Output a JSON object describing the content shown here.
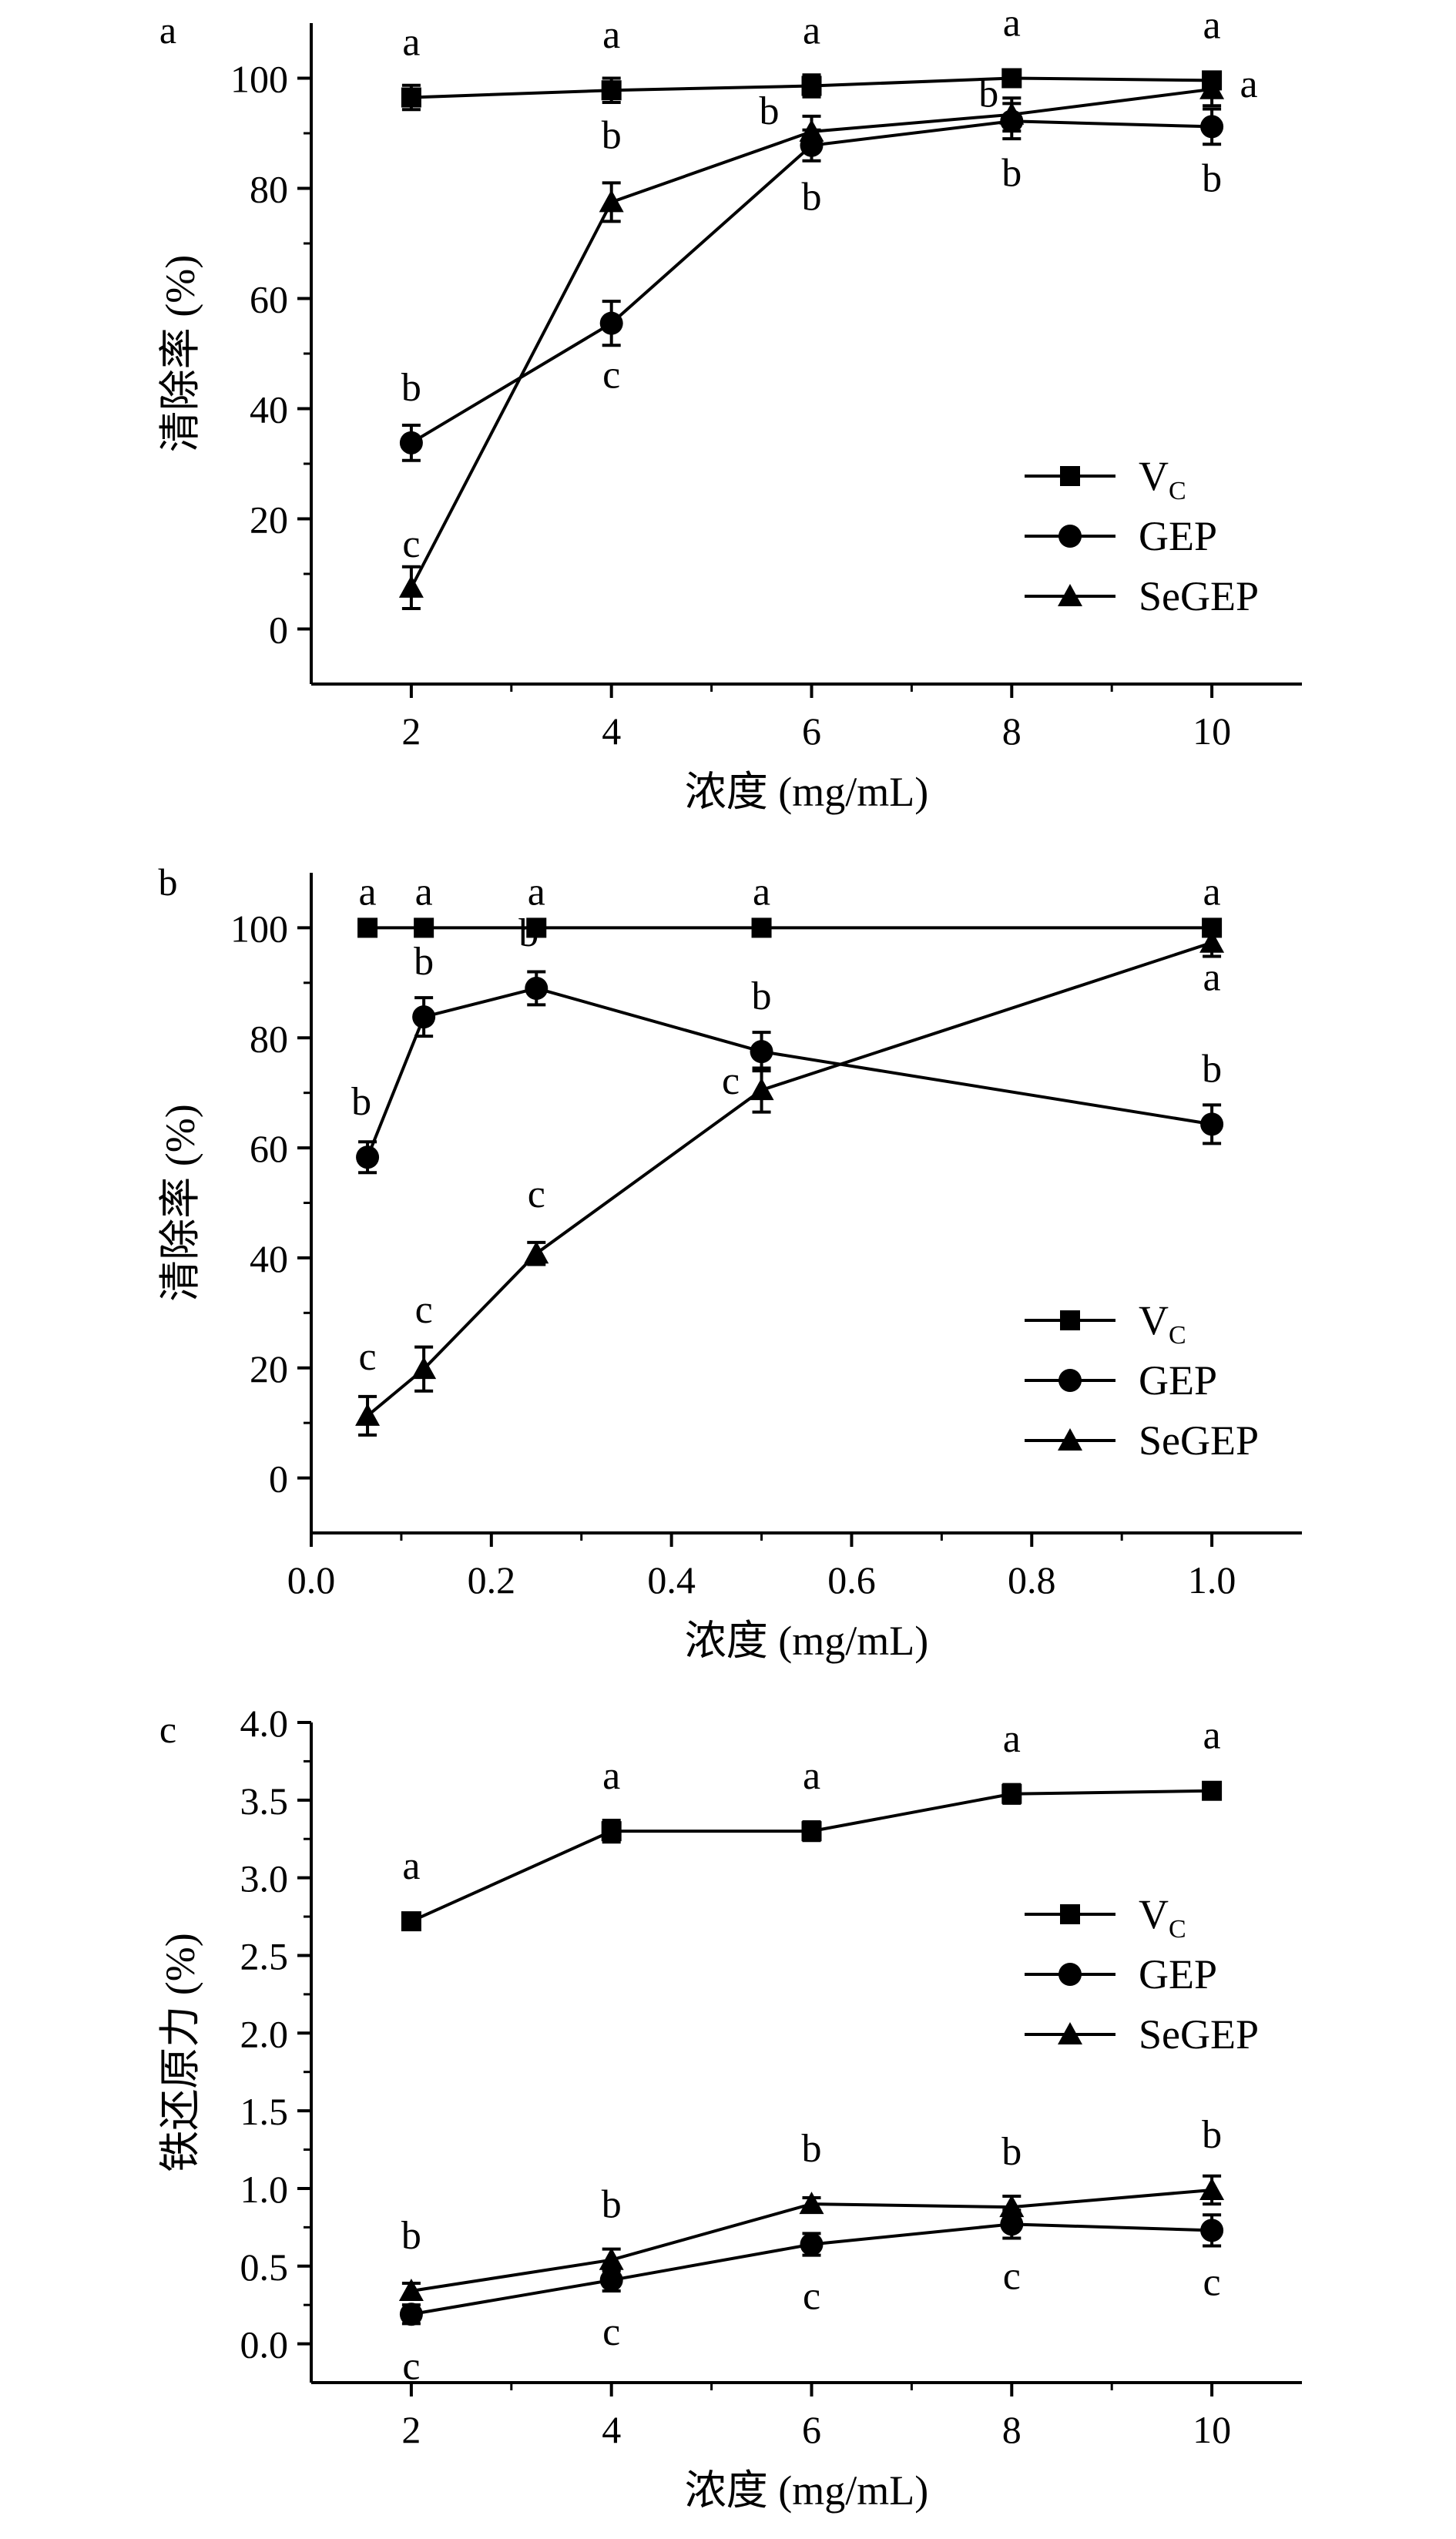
{
  "figure": {
    "legend_labels": {
      "vc_main": "V",
      "vc_sub": "C",
      "gep": "GEP",
      "segep": "SeGEP"
    },
    "colors": {
      "ink": "#000000",
      "background": "#ffffff"
    }
  },
  "chart_data": [
    {
      "type": "line",
      "panel_label": "a",
      "xlabel": "浓度 (mg/mL)",
      "ylabel": "清除率 (%)",
      "xlim": [
        1,
        10.9
      ],
      "ylim": [
        -10,
        110
      ],
      "xticks": [
        2,
        4,
        6,
        8,
        10
      ],
      "xtick_labels": [
        "2",
        "4",
        "6",
        "8",
        "10"
      ],
      "yticks": [
        0,
        20,
        40,
        60,
        80,
        100
      ],
      "ytick_labels": [
        "0",
        "20",
        "40",
        "60",
        "80",
        "100"
      ],
      "legend_position": "middle-right",
      "x": [
        2,
        4,
        6,
        8,
        10
      ],
      "series": [
        {
          "key": "vc",
          "name": "Vc",
          "marker": "square",
          "values": [
            96.5,
            97.8,
            98.6,
            100,
            99.6
          ],
          "errors": [
            2.2,
            2.2,
            2.0,
            1.0,
            1.5
          ],
          "letters": [
            "a",
            "a",
            "a",
            "a",
            "a"
          ]
        },
        {
          "key": "gep",
          "name": "GEP",
          "marker": "circle",
          "values": [
            33.8,
            55.5,
            87.8,
            92.2,
            91.2
          ],
          "errors": [
            3.2,
            4.0,
            2.8,
            3.2,
            3.2
          ],
          "letters": [
            "b",
            "c",
            "b",
            "b",
            "b"
          ]
        },
        {
          "key": "segep",
          "name": "SeGEP",
          "marker": "triangle",
          "values": [
            7.5,
            77.5,
            90.3,
            93.4,
            98.0
          ],
          "errors": [
            3.8,
            3.5,
            2.8,
            3.0,
            3.0
          ],
          "letters": [
            "c",
            "b",
            "b",
            "b",
            "a"
          ]
        }
      ]
    },
    {
      "type": "line",
      "panel_label": "b",
      "xlabel": "浓度 (mg/mL)",
      "ylabel": "清除率 (%)",
      "xlim": [
        0,
        1.1
      ],
      "ylim": [
        -10,
        110
      ],
      "xticks": [
        0,
        0.2,
        0.4,
        0.6,
        0.8,
        1.0
      ],
      "xtick_labels": [
        "0.0",
        "0.2",
        "0.4",
        "0.6",
        "0.8",
        "1.0"
      ],
      "yticks": [
        0,
        20,
        40,
        60,
        80,
        100
      ],
      "ytick_labels": [
        "0",
        "20",
        "40",
        "60",
        "80",
        "100"
      ],
      "legend_position": "lower-right",
      "x": [
        0.0625,
        0.125,
        0.25,
        0.5,
        1.0
      ],
      "series": [
        {
          "key": "vc",
          "name": "Vc",
          "marker": "square",
          "values": [
            100,
            100,
            100,
            100,
            100
          ],
          "errors": [
            0,
            0,
            0,
            0,
            0
          ],
          "letters": [
            "a",
            "a",
            "a",
            "a",
            "a"
          ]
        },
        {
          "key": "gep",
          "name": "GEP",
          "marker": "circle",
          "values": [
            58.3,
            83.8,
            89.0,
            77.5,
            64.3
          ],
          "errors": [
            2.8,
            3.5,
            3.0,
            3.5,
            3.5
          ],
          "letters": [
            "b",
            "b",
            "b",
            "b",
            "b"
          ]
        },
        {
          "key": "segep",
          "name": "SeGEP",
          "marker": "triangle",
          "values": [
            11.3,
            19.8,
            40.8,
            70.5,
            97.3
          ],
          "errors": [
            3.5,
            4.0,
            2.0,
            4.0,
            2.5
          ],
          "letters": [
            "c",
            "c",
            "c",
            "c",
            "a"
          ]
        }
      ]
    },
    {
      "type": "line",
      "panel_label": "c",
      "xlabel": "浓度 (mg/mL)",
      "ylabel": "铁还原力 (%)",
      "xlim": [
        1,
        10.9
      ],
      "ylim": [
        -0.25,
        4.0
      ],
      "xticks": [
        2,
        4,
        6,
        8,
        10
      ],
      "xtick_labels": [
        "2",
        "4",
        "6",
        "8",
        "10"
      ],
      "yticks": [
        0,
        0.5,
        1.0,
        1.5,
        2.0,
        2.5,
        3.0,
        3.5,
        4.0
      ],
      "ytick_labels": [
        "0.0",
        "0.5",
        "1.0",
        "1.5",
        "2.0",
        "2.5",
        "3.0",
        "3.5",
        "4.0"
      ],
      "legend_position": "upper-right",
      "x": [
        2,
        4,
        6,
        8,
        10
      ],
      "series": [
        {
          "key": "vc",
          "name": "Vc",
          "marker": "square",
          "values": [
            2.72,
            3.3,
            3.3,
            3.54,
            3.56
          ],
          "errors": [
            0.05,
            0.07,
            0.06,
            0.06,
            0.04
          ],
          "letters": [
            "a",
            "a",
            "a",
            "a",
            "a"
          ]
        },
        {
          "key": "gep",
          "name": "GEP",
          "marker": "circle",
          "values": [
            0.19,
            0.41,
            0.64,
            0.77,
            0.73
          ],
          "errors": [
            0.06,
            0.07,
            0.07,
            0.09,
            0.1
          ],
          "letters": [
            "c",
            "c",
            "c",
            "c",
            "c"
          ]
        },
        {
          "key": "segep",
          "name": "SeGEP",
          "marker": "triangle",
          "values": [
            0.34,
            0.54,
            0.9,
            0.88,
            0.99
          ],
          "errors": [
            0.05,
            0.07,
            0.04,
            0.07,
            0.09
          ],
          "letters": [
            "b",
            "b",
            "b",
            "b",
            "b"
          ]
        }
      ]
    }
  ]
}
